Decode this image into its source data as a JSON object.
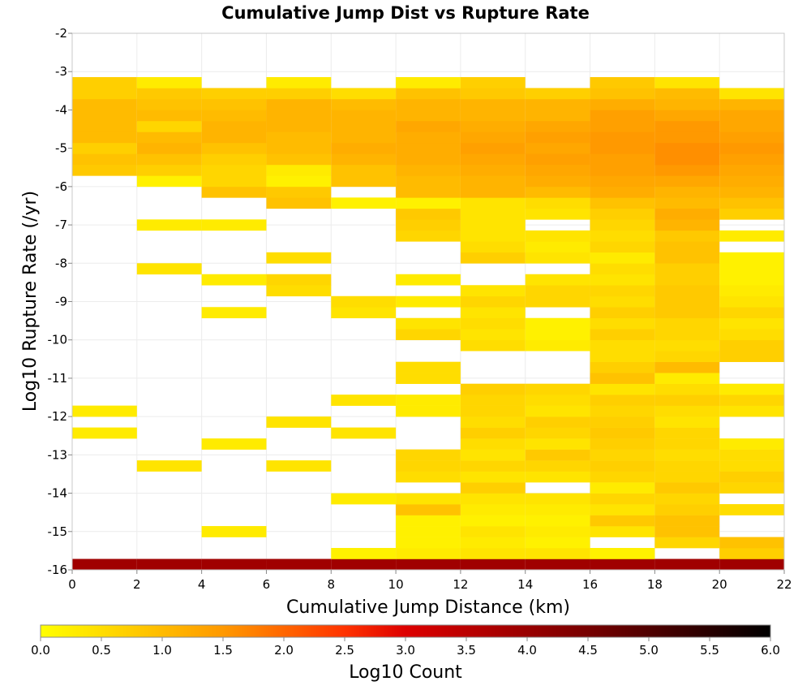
{
  "chart_data": {
    "type": "heatmap",
    "title": "Cumulative Jump Dist vs Rupture Rate",
    "xlabel": "Cumulative Jump Distance (km)",
    "ylabel": "Log10 Rupture Rate (/yr)",
    "xlim": [
      0,
      22
    ],
    "ylim": [
      -16,
      -2
    ],
    "x_ticks": [
      "0",
      "2",
      "4",
      "6",
      "8",
      "10",
      "12",
      "14",
      "16",
      "18",
      "20",
      "22"
    ],
    "y_ticks": [
      "-2",
      "-3",
      "-4",
      "-5",
      "-6",
      "-7",
      "-8",
      "-9",
      "-10",
      "-11",
      "-12",
      "-13",
      "-14",
      "-15",
      "-16"
    ],
    "grid": true,
    "x_bin_width": 2,
    "y_bin_height": 0.2857,
    "colorbar": {
      "label": "Log10 Count",
      "range": [
        0,
        6
      ],
      "ticks": [
        "0.0",
        "0.5",
        "1.0",
        "1.5",
        "2.0",
        "2.5",
        "3.0",
        "3.5",
        "4.0",
        "4.5",
        "5.0",
        "5.5",
        "6.0"
      ],
      "stops": [
        {
          "v": 0.0,
          "color": "#ffff00"
        },
        {
          "v": 1.5,
          "color": "#ff9900"
        },
        {
          "v": 2.5,
          "color": "#ff3300"
        },
        {
          "v": 3.0,
          "color": "#dd0000"
        },
        {
          "v": 4.5,
          "color": "#770000"
        },
        {
          "v": 6.0,
          "color": "#000000"
        }
      ]
    },
    "row_bottom_rates": [
      -16,
      -15.714,
      -15.429,
      -15.143,
      -14.857,
      -14.571,
      -14.286,
      -14,
      -13.714,
      -13.429,
      -13.143,
      -12.857,
      -12.571,
      -12.286,
      -12,
      -11.714,
      -11.429,
      -11.143,
      -10.857,
      -10.571,
      -10.286,
      -10,
      -9.714,
      -9.429,
      -9.143,
      -8.857,
      -8.571,
      -8.286,
      -8,
      -7.714,
      -7.429,
      -7.143,
      -6.857,
      -6.571,
      -6.286,
      -6,
      -5.714,
      -5.429,
      -5.143,
      -4.857,
      -4.571,
      -4.286,
      -4,
      -3.714,
      -3.429
    ],
    "x_bin_starts": [
      0,
      2,
      4,
      6,
      8,
      10,
      12,
      14,
      16,
      18,
      20
    ],
    "cells": [
      [
        3.9,
        3.9,
        3.9,
        3.9,
        3.9,
        3.9,
        3.9,
        3.9,
        3.9,
        3.9,
        3.9
      ],
      [
        null,
        null,
        null,
        null,
        0.2,
        0.3,
        0.4,
        0.4,
        0.2,
        null,
        0.7
      ],
      [
        null,
        null,
        null,
        null,
        null,
        0.2,
        0.3,
        0.2,
        null,
        0.6,
        0.9
      ],
      [
        null,
        null,
        0.3,
        null,
        null,
        0.2,
        0.4,
        0.3,
        0.4,
        0.9,
        null
      ],
      [
        null,
        null,
        null,
        null,
        null,
        0.2,
        0.2,
        0.2,
        0.8,
        0.9,
        null
      ],
      [
        null,
        null,
        null,
        null,
        null,
        0.9,
        0.3,
        0.3,
        0.4,
        0.7,
        0.5
      ],
      [
        null,
        null,
        null,
        null,
        0.3,
        0.4,
        0.4,
        0.4,
        0.6,
        0.6,
        null
      ],
      [
        null,
        null,
        null,
        null,
        null,
        null,
        0.7,
        null,
        0.3,
        0.8,
        0.6
      ],
      [
        null,
        null,
        null,
        null,
        null,
        0.5,
        0.4,
        0.4,
        0.6,
        0.6,
        0.7
      ],
      [
        null,
        0.4,
        null,
        0.4,
        null,
        0.6,
        0.6,
        0.6,
        0.7,
        0.6,
        0.5
      ],
      [
        null,
        null,
        null,
        null,
        null,
        0.6,
        0.4,
        0.8,
        0.6,
        0.5,
        0.5
      ],
      [
        null,
        null,
        0.3,
        null,
        null,
        null,
        0.5,
        0.4,
        0.7,
        0.6,
        0.3
      ],
      [
        0.3,
        null,
        null,
        null,
        0.4,
        null,
        0.7,
        0.6,
        0.8,
        0.6,
        null
      ],
      [
        null,
        null,
        null,
        0.4,
        null,
        null,
        0.5,
        0.7,
        0.7,
        0.4,
        null
      ],
      [
        0.3,
        null,
        null,
        null,
        null,
        0.3,
        0.6,
        0.4,
        0.6,
        0.5,
        0.4
      ],
      [
        null,
        null,
        null,
        null,
        0.4,
        0.3,
        0.6,
        0.5,
        0.7,
        0.7,
        0.6
      ],
      [
        null,
        null,
        null,
        null,
        null,
        null,
        0.7,
        0.6,
        0.4,
        0.5,
        0.3
      ],
      [
        null,
        null,
        null,
        null,
        null,
        0.5,
        null,
        null,
        0.9,
        0.3,
        null
      ],
      [
        null,
        null,
        null,
        null,
        null,
        0.5,
        null,
        null,
        0.7,
        1.0,
        null
      ],
      [
        null,
        null,
        null,
        null,
        null,
        null,
        null,
        null,
        0.5,
        0.6,
        0.7
      ],
      [
        null,
        null,
        null,
        null,
        null,
        null,
        0.5,
        0.3,
        0.5,
        0.5,
        0.7
      ],
      [
        null,
        null,
        null,
        null,
        null,
        0.6,
        0.4,
        0.2,
        0.7,
        0.6,
        0.5
      ],
      [
        null,
        null,
        null,
        null,
        null,
        0.4,
        0.5,
        0.2,
        0.5,
        0.6,
        0.4
      ],
      [
        null,
        null,
        0.3,
        null,
        0.4,
        null,
        0.4,
        null,
        0.7,
        0.8,
        0.6
      ],
      [
        null,
        null,
        null,
        null,
        0.5,
        0.3,
        0.6,
        0.6,
        0.5,
        0.8,
        0.4
      ],
      [
        null,
        null,
        null,
        0.5,
        null,
        null,
        0.4,
        0.6,
        0.6,
        0.8,
        0.3
      ],
      [
        null,
        null,
        0.3,
        0.6,
        null,
        0.3,
        null,
        0.4,
        0.4,
        0.7,
        0.2
      ],
      [
        null,
        0.4,
        null,
        null,
        null,
        null,
        null,
        null,
        0.5,
        0.7,
        0.2
      ],
      [
        null,
        null,
        null,
        0.5,
        null,
        null,
        0.7,
        0.4,
        0.3,
        0.9,
        0.2
      ],
      [
        null,
        null,
        null,
        null,
        null,
        null,
        0.5,
        0.3,
        0.6,
        0.9,
        null
      ],
      [
        null,
        null,
        null,
        null,
        null,
        0.6,
        0.4,
        0.4,
        0.5,
        0.8,
        0.3
      ],
      [
        null,
        0.3,
        0.3,
        null,
        null,
        0.7,
        0.4,
        null,
        0.6,
        1.1,
        null
      ],
      [
        null,
        null,
        null,
        null,
        null,
        0.8,
        0.4,
        0.4,
        0.7,
        1.2,
        0.7
      ],
      [
        null,
        null,
        null,
        0.9,
        0.2,
        0.2,
        0.4,
        0.5,
        0.9,
        1.0,
        0.9
      ],
      [
        null,
        null,
        0.9,
        0.8,
        null,
        1.0,
        1.1,
        1.0,
        1.2,
        1.1,
        1.1
      ],
      [
        null,
        0.2,
        0.6,
        0.2,
        0.9,
        1.0,
        1.1,
        1.2,
        1.3,
        1.3,
        1.2
      ],
      [
        0.8,
        0.7,
        0.6,
        0.3,
        0.9,
        1.1,
        1.2,
        1.3,
        1.4,
        1.5,
        1.3
      ],
      [
        0.9,
        0.9,
        0.7,
        0.9,
        1.1,
        1.2,
        1.3,
        1.4,
        1.4,
        1.6,
        1.4
      ],
      [
        0.7,
        1.1,
        0.9,
        1.0,
        1.2,
        1.2,
        1.4,
        1.3,
        1.5,
        1.6,
        1.5
      ],
      [
        1.0,
        1.0,
        1.1,
        1.0,
        1.1,
        1.2,
        1.3,
        1.4,
        1.5,
        1.5,
        1.4
      ],
      [
        1.0,
        0.6,
        1.1,
        1.1,
        1.1,
        1.3,
        1.2,
        1.3,
        1.4,
        1.5,
        1.3
      ],
      [
        1.0,
        1.0,
        1.0,
        1.1,
        1.1,
        1.1,
        1.1,
        1.1,
        1.4,
        1.3,
        1.3
      ],
      [
        1.0,
        0.9,
        0.9,
        1.1,
        1.0,
        1.1,
        1.1,
        1.1,
        1.2,
        1.1,
        1.1
      ],
      [
        0.7,
        0.8,
        0.7,
        0.7,
        0.5,
        0.9,
        0.8,
        0.7,
        0.9,
        1.0,
        0.4
      ],
      [
        0.7,
        0.3,
        null,
        0.3,
        null,
        0.3,
        0.7,
        null,
        0.8,
        0.4,
        null
      ]
    ]
  }
}
